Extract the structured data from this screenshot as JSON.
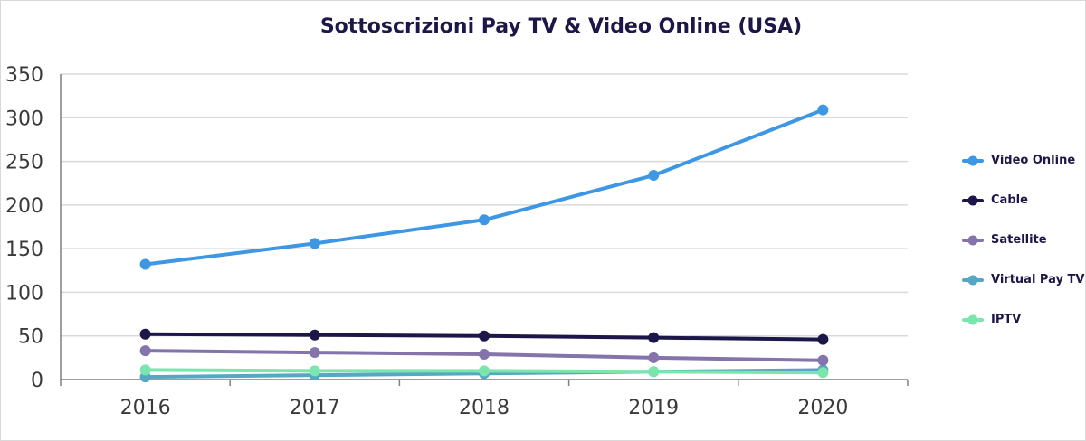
{
  "chart_data": {
    "type": "line",
    "title": "Sottoscrizioni Pay TV & Video Online (USA)",
    "xlabel": "",
    "ylabel": "",
    "categories": [
      "2016",
      "2017",
      "2018",
      "2019",
      "2020"
    ],
    "ylim": [
      0,
      350
    ],
    "yticks": [
      "0",
      "50",
      "100",
      "150",
      "200",
      "250",
      "300",
      "350"
    ],
    "grid": true,
    "legend_position": "right",
    "series": [
      {
        "name": "Video Online",
        "color": "#3d97e4",
        "values": [
          132,
          156,
          183,
          234,
          309
        ]
      },
      {
        "name": "Cable",
        "color": "#1c1748",
        "values": [
          52,
          51,
          50,
          48,
          46
        ]
      },
      {
        "name": "Satellite",
        "color": "#8474ab",
        "values": [
          33,
          31,
          29,
          25,
          22
        ]
      },
      {
        "name": "Virtual Pay TV",
        "color": "#55a7c4",
        "values": [
          3,
          5,
          7,
          9,
          11
        ]
      },
      {
        "name": "IPTV",
        "color": "#7ae6ad",
        "values": [
          11,
          10,
          10,
          9,
          8
        ]
      }
    ]
  }
}
